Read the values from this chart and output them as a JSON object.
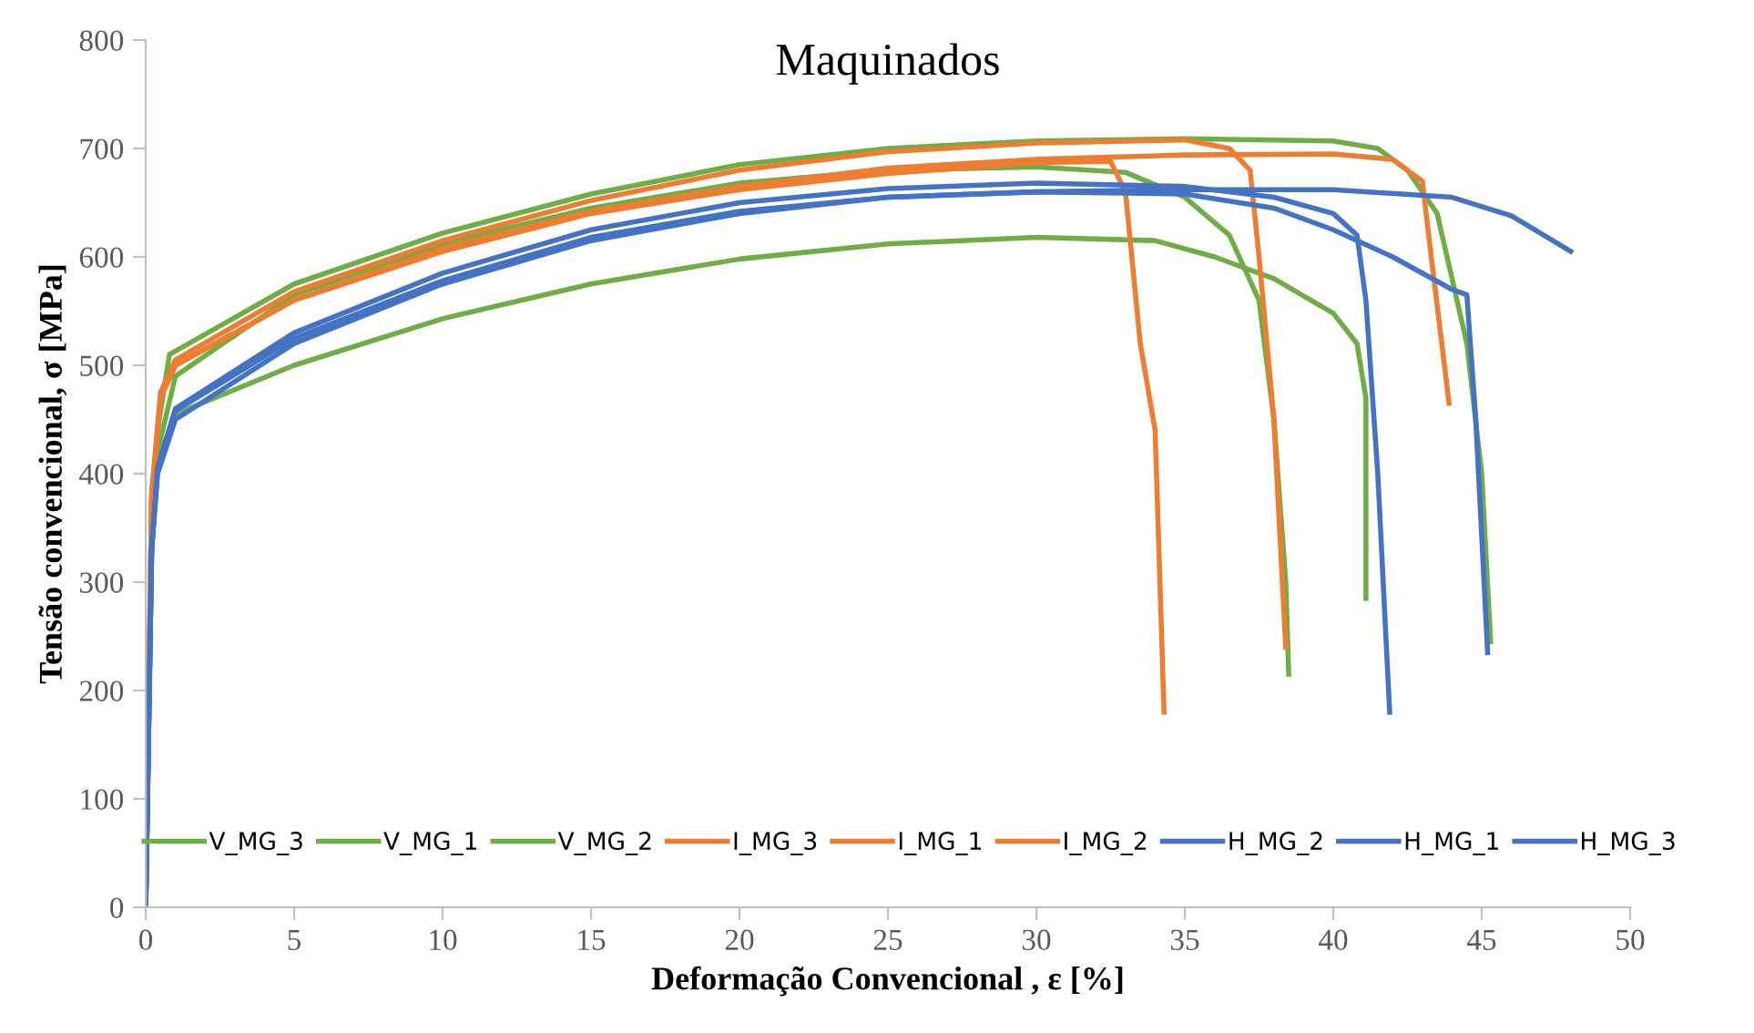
{
  "chart_data": {
    "type": "line",
    "title": "Maquinados",
    "xlabel": "Deformação Convencional , ε [%]",
    "ylabel": "Tensão convencional, σ [MPa]",
    "xlim": [
      0,
      50
    ],
    "xticks": [
      0,
      5,
      10,
      15,
      20,
      25,
      30,
      35,
      40,
      45,
      50
    ],
    "ylim": [
      0,
      800
    ],
    "yticks": [
      0,
      100,
      200,
      300,
      400,
      500,
      600,
      700,
      800
    ],
    "grid": false,
    "legend": "bottom",
    "marker": "none",
    "line_style": "solid",
    "series": [
      {
        "name": "V_MG_3",
        "color": "#70ad47",
        "x": [
          0,
          0.2,
          0.4,
          0.8,
          5,
          10,
          15,
          20,
          25,
          30,
          35,
          40,
          41.5,
          42.5,
          43.5,
          44.5,
          45,
          45.3
        ],
        "values": [
          0,
          350,
          440,
          510,
          575,
          622,
          658,
          685,
          700,
          707,
          709,
          707,
          700,
          680,
          640,
          520,
          400,
          245
        ]
      },
      {
        "name": "V_MG_1",
        "color": "#70ad47",
        "x": [
          0,
          0.2,
          0.4,
          1,
          5,
          10,
          15,
          20,
          25,
          30,
          33,
          35,
          36.5,
          37.5,
          38,
          38.4,
          38.5
        ],
        "values": [
          0,
          340,
          420,
          490,
          565,
          612,
          645,
          668,
          680,
          683,
          678,
          655,
          620,
          560,
          450,
          300,
          215
        ]
      },
      {
        "name": "V_MG_2",
        "color": "#70ad47",
        "x": [
          0,
          0.2,
          0.4,
          1,
          5,
          10,
          15,
          20,
          25,
          30,
          34,
          36,
          38,
          40,
          40.8,
          41.1,
          41.1
        ],
        "values": [
          0,
          330,
          410,
          455,
          500,
          543,
          575,
          598,
          612,
          618,
          615,
          600,
          580,
          548,
          520,
          470,
          285
        ]
      },
      {
        "name": "I_MG_3",
        "color": "#ed7d31",
        "x": [
          0,
          0.2,
          0.5,
          1,
          5,
          10,
          15,
          20,
          25,
          30,
          32.5,
          33,
          33.5,
          34,
          34.3
        ],
        "values": [
          0,
          380,
          470,
          500,
          560,
          605,
          640,
          662,
          677,
          687,
          688,
          660,
          520,
          440,
          180
        ]
      },
      {
        "name": "I_MG_1",
        "color": "#ed7d31",
        "x": [
          0,
          0.2,
          0.5,
          1,
          5,
          10,
          15,
          20,
          25,
          30,
          35,
          36.5,
          37.2,
          37.5,
          38,
          38.4
        ],
        "values": [
          0,
          380,
          475,
          505,
          568,
          615,
          652,
          680,
          697,
          705,
          708,
          700,
          680,
          600,
          450,
          240
        ]
      },
      {
        "name": "I_MG_2",
        "color": "#ed7d31",
        "x": [
          0,
          0.2,
          0.5,
          1,
          5,
          10,
          15,
          20,
          25,
          30,
          35,
          40,
          42,
          43,
          43.3,
          43.9
        ],
        "values": [
          0,
          380,
          470,
          500,
          560,
          608,
          642,
          665,
          682,
          690,
          694,
          695,
          690,
          670,
          600,
          465
        ]
      },
      {
        "name": "H_MG_2",
        "color": "#4472c4",
        "x": [
          0,
          0.2,
          0.4,
          1,
          5,
          10,
          15,
          20,
          25,
          30,
          35,
          40,
          44,
          46,
          48
        ],
        "values": [
          0,
          330,
          400,
          450,
          520,
          575,
          615,
          640,
          655,
          660,
          662,
          662,
          655,
          638,
          605
        ]
      },
      {
        "name": "H_MG_1",
        "color": "#4472c4",
        "x": [
          0,
          0.2,
          0.4,
          1,
          5,
          10,
          15,
          20,
          25,
          30,
          35,
          38,
          40,
          40.8,
          41.1,
          41.5,
          41.9
        ],
        "values": [
          0,
          330,
          405,
          460,
          530,
          585,
          625,
          650,
          663,
          668,
          665,
          655,
          640,
          620,
          560,
          400,
          180
        ]
      },
      {
        "name": "H_MG_3",
        "color": "#4472c4",
        "x": [
          0,
          0.2,
          0.4,
          1,
          5,
          10,
          15,
          20,
          25,
          30,
          35,
          38,
          40,
          42,
          44,
          44.5,
          44.8,
          45.2
        ],
        "values": [
          0,
          330,
          405,
          458,
          525,
          578,
          618,
          642,
          655,
          660,
          658,
          645,
          625,
          600,
          570,
          565,
          450,
          235
        ]
      }
    ]
  }
}
